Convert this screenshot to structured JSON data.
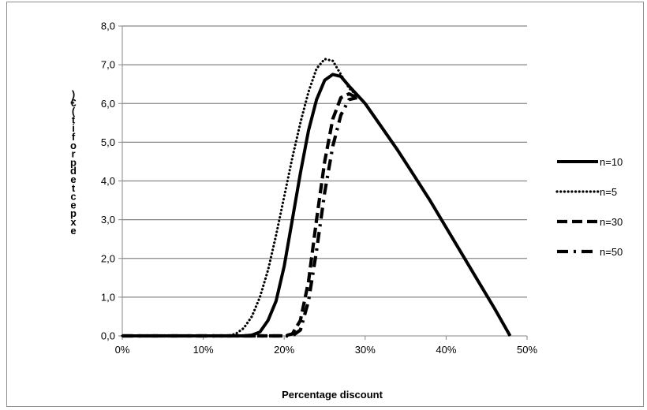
{
  "chart_data": {
    "type": "line",
    "title": "",
    "xlabel": "Percentage discount",
    "ylabel": "expected profit (€)",
    "xlim": [
      0,
      50
    ],
    "ylim": [
      0,
      8
    ],
    "x_ticks": [
      "0%",
      "10%",
      "20%",
      "30%",
      "40%",
      "50%"
    ],
    "y_ticks": [
      "0,0",
      "1,0",
      "2,0",
      "3,0",
      "4,0",
      "5,0",
      "6,0",
      "7,0",
      "8,0"
    ],
    "grid": true,
    "legend_position": "right",
    "series": [
      {
        "name": "n=10",
        "style": "solid",
        "points": [
          [
            0,
            0
          ],
          [
            15,
            0
          ],
          [
            16,
            0.02
          ],
          [
            17,
            0.1
          ],
          [
            18,
            0.4
          ],
          [
            19,
            0.9
          ],
          [
            20,
            1.8
          ],
          [
            21,
            3.0
          ],
          [
            22,
            4.2
          ],
          [
            23,
            5.3
          ],
          [
            24,
            6.1
          ],
          [
            25,
            6.6
          ],
          [
            26,
            6.75
          ],
          [
            27,
            6.7
          ],
          [
            28,
            6.45
          ],
          [
            30,
            6.0
          ],
          [
            32,
            5.4
          ],
          [
            34,
            4.8
          ],
          [
            36,
            4.15
          ],
          [
            38,
            3.5
          ],
          [
            40,
            2.8
          ],
          [
            42,
            2.1
          ],
          [
            44,
            1.4
          ],
          [
            46,
            0.7
          ],
          [
            47.9,
            0
          ]
        ]
      },
      {
        "name": "n=5",
        "style": "dotted",
        "points": [
          [
            0,
            0
          ],
          [
            13,
            0
          ],
          [
            14,
            0.05
          ],
          [
            15,
            0.2
          ],
          [
            16,
            0.5
          ],
          [
            17,
            1.0
          ],
          [
            18,
            1.7
          ],
          [
            19,
            2.6
          ],
          [
            20,
            3.6
          ],
          [
            21,
            4.6
          ],
          [
            22,
            5.5
          ],
          [
            23,
            6.3
          ],
          [
            24,
            6.9
          ],
          [
            25,
            7.15
          ],
          [
            26,
            7.1
          ],
          [
            27,
            6.75
          ],
          [
            28,
            6.4
          ],
          [
            29,
            6.2
          ]
        ]
      },
      {
        "name": "n=30",
        "style": "dashed",
        "points": [
          [
            0,
            0
          ],
          [
            20,
            0
          ],
          [
            21,
            0.05
          ],
          [
            22,
            0.4
          ],
          [
            23,
            1.4
          ],
          [
            24,
            3.0
          ],
          [
            25,
            4.5
          ],
          [
            26,
            5.6
          ],
          [
            27,
            6.15
          ],
          [
            28,
            6.25
          ],
          [
            29,
            6.15
          ]
        ]
      },
      {
        "name": "n=50",
        "style": "dashdot",
        "points": [
          [
            0,
            0
          ],
          [
            21,
            0
          ],
          [
            22,
            0.15
          ],
          [
            23,
            0.9
          ],
          [
            24,
            2.2
          ],
          [
            25,
            3.7
          ],
          [
            26,
            4.9
          ],
          [
            27,
            5.7
          ],
          [
            28,
            6.1
          ],
          [
            29,
            6.15
          ]
        ]
      }
    ]
  }
}
